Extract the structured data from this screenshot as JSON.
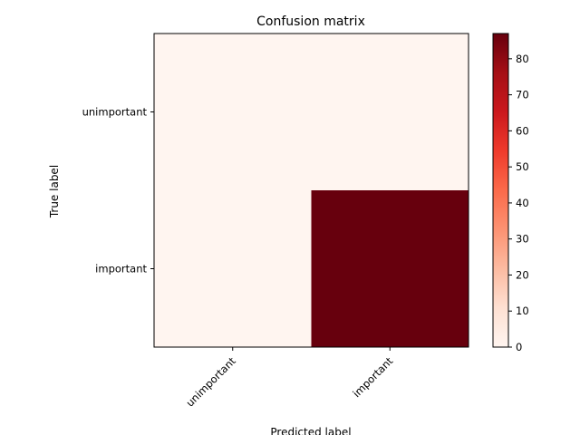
{
  "chart_data": {
    "type": "heatmap",
    "title": "Confusion matrix",
    "xlabel": "Predicted label",
    "ylabel": "True label",
    "row_labels": [
      "unimportant",
      "important"
    ],
    "col_labels": [
      "unimportant",
      "important"
    ],
    "values": [
      [
        0,
        0
      ],
      [
        0,
        87
      ]
    ],
    "colormap": "Reds",
    "colorbar": {
      "min": 0,
      "max": 87,
      "ticks": [
        0,
        10,
        20,
        30,
        40,
        50,
        60,
        70,
        80
      ]
    },
    "colors": {
      "low": "#fff5f0",
      "high": "#67000d"
    }
  }
}
